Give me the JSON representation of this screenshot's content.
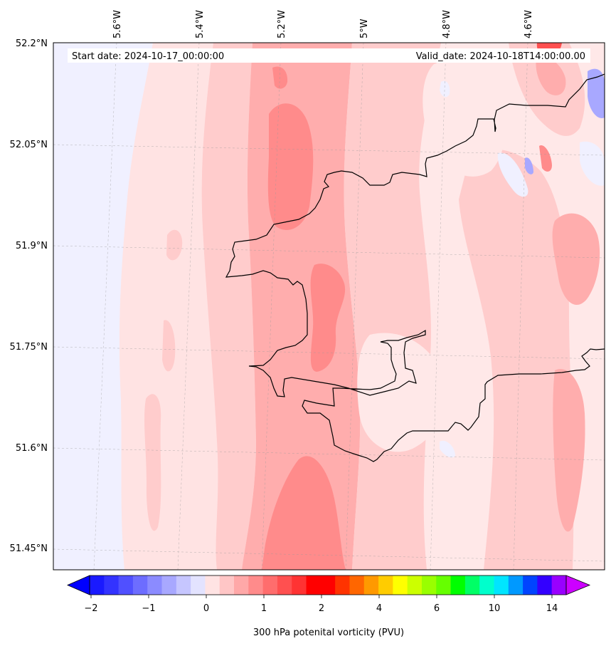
{
  "header": {
    "start_date": "Start date: 2024-10-17_00:00:00",
    "valid_date": "Valid_date: 2024-10-18T14:00:00.00"
  },
  "axes": {
    "lon_labels": [
      "5.6°W",
      "5.4°W",
      "5.2°W",
      "5°W",
      "4.8°W",
      "4.6°W"
    ],
    "lat_labels": [
      "52.2°N",
      "52.05°N",
      "51.9°N",
      "51.75°N",
      "51.6°N",
      "51.45°N"
    ]
  },
  "colorbar": {
    "label": "300 hPa potenital vorticity (PVU)",
    "tick_labels": [
      "−2",
      "−1",
      "0",
      "1",
      "2",
      "4",
      "6",
      "10",
      "14"
    ],
    "colors": [
      "#1a1aff",
      "#3333ff",
      "#5050ff",
      "#6d6dff",
      "#8b8bff",
      "#a8a8ff",
      "#c6c6ff",
      "#e3e3ff",
      "#ffe3e3",
      "#ffc6c6",
      "#ffa8a8",
      "#ff8b8b",
      "#ff6d6d",
      "#ff5050",
      "#ff3333",
      "#ff0000",
      "#ff0000",
      "#ff3300",
      "#ff6600",
      "#ff9900",
      "#ffcc00",
      "#ffff00",
      "#ccff00",
      "#99ff00",
      "#66ff00",
      "#00ff00",
      "#00ff66",
      "#00ffcc",
      "#00e5ff",
      "#0099ff",
      "#0044ff",
      "#3300ff",
      "#9900ff"
    ],
    "under_color": "#0000ff",
    "over_color": "#cc00ff"
  },
  "field_colors": {
    "background": "#ffe8e8",
    "negative_light": "#f0f0ff",
    "negative_mid": "#c8c8ff",
    "negative_strong": "#a8a8ff",
    "pv_0_05": "#ffe3e3",
    "pv_05_075": "#ffcccc",
    "pv_075_1": "#ffadad",
    "pv_1_125": "#ff8b8b",
    "coastline": "#000000"
  }
}
